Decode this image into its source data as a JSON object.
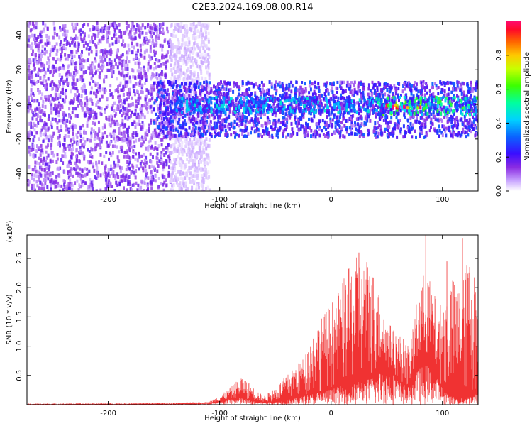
{
  "title": "C2E3.2024.169.08.00.R14",
  "chart_data": [
    {
      "type": "heatmap",
      "xlabel": "Height of straight line (km)",
      "ylabel": "Frequency (Hz)",
      "xlim": [
        -273,
        132
      ],
      "ylim": [
        -50,
        48
      ],
      "xticks": [
        -200,
        -100,
        0,
        100
      ],
      "yticks": [
        -40,
        -20,
        0,
        20,
        40
      ],
      "colorbar": {
        "label": "Normalized spectral amplitude",
        "range": [
          0.0,
          1.0
        ],
        "ticks": [
          "0.0",
          "0.2",
          "0.4",
          "0.6",
          "0.8"
        ],
        "tick_values": [
          0.0,
          0.2,
          0.4,
          0.6,
          0.8
        ]
      },
      "regions": [
        {
          "x": [
            -273,
            -145
          ],
          "freq": [
            -50,
            48
          ],
          "amplitude": 0.12
        },
        {
          "x": [
            -145,
            -110
          ],
          "freq": [
            -50,
            48
          ],
          "amplitude": 0.05
        },
        {
          "x": [
            -160,
            132
          ],
          "freq": [
            -18,
            14
          ],
          "amplitude": 0.2
        },
        {
          "x": [
            -140,
            40
          ],
          "freq": [
            -4,
            5
          ],
          "amplitude": 0.3
        },
        {
          "x": [
            40,
            130
          ],
          "freq": [
            -5,
            5
          ],
          "amplitude": 0.4
        },
        {
          "x": [
            45,
            80
          ],
          "freq": [
            -1,
            1
          ],
          "amplitude": 0.85
        }
      ],
      "grid": false
    },
    {
      "type": "line",
      "xlabel": "Height of straight line (km)",
      "ylabel": "SNR (10 * v/v)",
      "y_multiplier": "(x10^4)",
      "multiplier_base": "(x10",
      "multiplier_exp": "4",
      "xlim": [
        -273,
        132
      ],
      "ylim": [
        0,
        2.9
      ],
      "xticks": [
        -200,
        -100,
        0,
        100
      ],
      "yticks": [
        0.5,
        1.0,
        1.5,
        2.0,
        2.5
      ],
      "ytick_labels": [
        "0.5",
        "1.0",
        "1.5",
        "2.0",
        "2.5"
      ],
      "color": "#f03232",
      "envelope": {
        "x": [
          -273,
          -150,
          -110,
          -100,
          -90,
          -80,
          -70,
          -60,
          -50,
          -40,
          -35,
          -25,
          -15,
          -5,
          5,
          15,
          25,
          35,
          42,
          48,
          55,
          62,
          70,
          78,
          85,
          92,
          100,
          108,
          116,
          124,
          132
        ],
        "low": [
          0.0,
          0.01,
          0.02,
          0.05,
          0.1,
          0.12,
          0.06,
          0.04,
          0.05,
          0.08,
          0.1,
          0.15,
          0.2,
          0.25,
          0.3,
          0.35,
          0.4,
          0.45,
          0.55,
          0.6,
          0.55,
          0.4,
          0.3,
          0.6,
          0.7,
          0.55,
          0.3,
          0.15,
          0.1,
          0.15,
          0.2
        ],
        "high": [
          0.02,
          0.03,
          0.05,
          0.15,
          0.3,
          0.5,
          0.3,
          0.15,
          0.3,
          0.5,
          0.6,
          0.8,
          1.3,
          1.6,
          1.9,
          2.3,
          2.6,
          2.5,
          2.0,
          1.6,
          1.3,
          1.2,
          1.0,
          1.9,
          2.4,
          1.9,
          1.7,
          2.2,
          2.0,
          2.6,
          2.0
        ]
      },
      "peaks": [
        {
          "x": 85,
          "y": 2.9
        },
        {
          "x": 104,
          "y": 2.45
        },
        {
          "x": 118,
          "y": 2.85
        },
        {
          "x": 25,
          "y": 2.6
        }
      ]
    }
  ]
}
